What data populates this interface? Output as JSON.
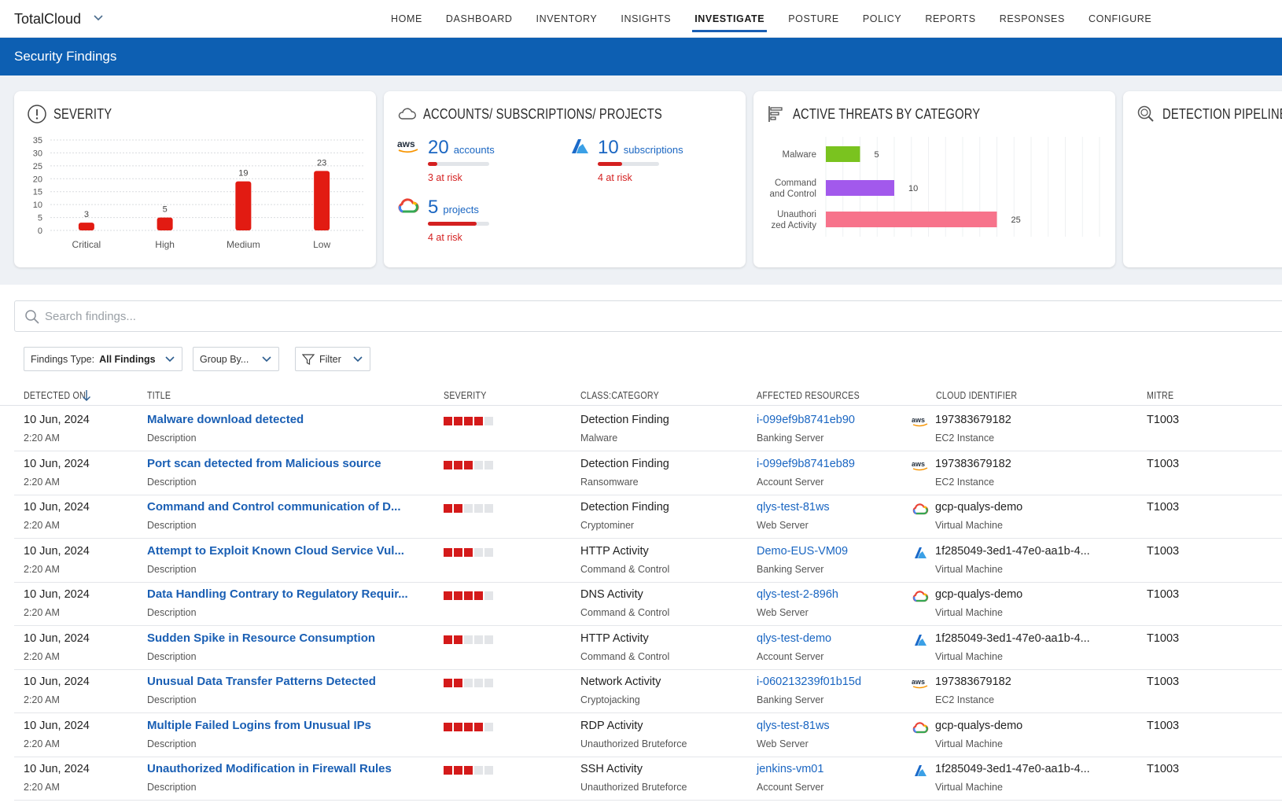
{
  "app": {
    "name": "TotalCloud"
  },
  "nav": [
    "HOME",
    "DASHBOARD",
    "INVENTORY",
    "INSIGHTS",
    "INVESTIGATE",
    "POSTURE",
    "POLICY",
    "REPORTS",
    "RESPONSES",
    "CONFIGURE"
  ],
  "nav_active": "INVESTIGATE",
  "page_title": "Security Findings",
  "cards": {
    "severity": {
      "title": "SEVERITY"
    },
    "accounts": {
      "title": "ACCOUNTS/ SUBSCRIPTIONS/ PROJECTS",
      "aws": {
        "logo": "aws",
        "count": "20",
        "label": "accounts",
        "risk": "3 at risk",
        "risk_fraction": 0.15
      },
      "azure": {
        "count": "10",
        "label": "subscriptions",
        "risk": "4 at risk",
        "risk_fraction": 0.4
      },
      "gcp": {
        "count": "5",
        "label": "projects",
        "risk": "4 at risk",
        "risk_fraction": 0.8
      }
    },
    "threats": {
      "title": "ACTIVE THREATS BY CATEGORY"
    },
    "pipeline": {
      "title": "DETECTION PIPELINE"
    }
  },
  "chart_data": [
    {
      "type": "bar",
      "categories": [
        "Critical",
        "High",
        "Medium",
        "Low"
      ],
      "values": [
        3,
        5,
        19,
        23
      ],
      "yticks": [
        0,
        5,
        10,
        15,
        20,
        25,
        30,
        35
      ],
      "ylim": [
        0,
        35
      ],
      "color": "#e21b12",
      "grid": true
    },
    {
      "type": "bar",
      "orientation": "horizontal",
      "categories": [
        [
          "Malware"
        ],
        [
          "Command",
          "and Control"
        ],
        [
          "Unauthori",
          "zed Activity"
        ]
      ],
      "values": [
        5,
        10,
        25
      ],
      "colors": [
        "#7ac31f",
        "#a259ec",
        "#f7738b"
      ],
      "xlim": [
        0,
        40
      ]
    }
  ],
  "search": {
    "placeholder": "Search findings..."
  },
  "filters": {
    "findings_type_label": "Findings Type:",
    "findings_type_value": "All Findings",
    "group_by": "Group By...",
    "filter": "Filter"
  },
  "table": {
    "headers": [
      "DETECTED ON",
      "TITLE",
      "SEVERITY",
      "CLASS:CATEGORY",
      "AFFECTED RESOURCES",
      "CLOUD IDENTIFIER",
      "MITRE"
    ],
    "rows": [
      {
        "date": "10 Jun, 2024",
        "time": "2:20 AM",
        "title": "Malware download detected",
        "desc": "Description",
        "severity": 4,
        "class": "Detection Finding",
        "category": "Malware",
        "resource": "i-099ef9b8741eb90",
        "resource_type": "Banking Server",
        "cloud": "aws",
        "cloud_id": "197383679182",
        "cloud_type": "EC2 Instance",
        "mitre": "T1003"
      },
      {
        "date": "10 Jun, 2024",
        "time": "2:20 AM",
        "title": "Port scan detected from Malicious source",
        "desc": "Description",
        "severity": 3,
        "class": "Detection Finding",
        "category": "Ransomware",
        "resource": "i-099ef9b8741eb89",
        "resource_type": "Account Server",
        "cloud": "aws",
        "cloud_id": "197383679182",
        "cloud_type": "EC2 Instance",
        "mitre": "T1003"
      },
      {
        "date": "10 Jun, 2024",
        "time": "2:20 AM",
        "title": "Command and Control communication of D...",
        "desc": "Description",
        "severity": 2,
        "class": "Detection Finding",
        "category": "Cryptominer",
        "resource": "qlys-test-81ws",
        "resource_type": "Web Server",
        "cloud": "gcp",
        "cloud_id": "gcp-qualys-demo",
        "cloud_type": "Virtual Machine",
        "mitre": "T1003"
      },
      {
        "date": "10 Jun, 2024",
        "time": "2:20 AM",
        "title": "Attempt to Exploit Known Cloud Service Vul...",
        "desc": "Description",
        "severity": 3,
        "class": "HTTP Activity",
        "category": "Command & Control",
        "resource": "Demo-EUS-VM09",
        "resource_type": "Banking Server",
        "cloud": "azure",
        "cloud_id": "1f285049-3ed1-47e0-aa1b-4...",
        "cloud_type": "Virtual Machine",
        "mitre": "T1003"
      },
      {
        "date": "10 Jun, 2024",
        "time": "2:20 AM",
        "title": "Data Handling Contrary to Regulatory Requir...",
        "desc": "Description",
        "severity": 4,
        "class": "DNS Activity",
        "category": "Command & Control",
        "resource": "qlys-test-2-896h",
        "resource_type": "Web Server",
        "cloud": "gcp",
        "cloud_id": "gcp-qualys-demo",
        "cloud_type": "Virtual Machine",
        "mitre": "T1003"
      },
      {
        "date": "10 Jun, 2024",
        "time": "2:20 AM",
        "title": "Sudden Spike in Resource Consumption",
        "desc": "Description",
        "severity": 2,
        "class": "HTTP Activity",
        "category": "Command & Control",
        "resource": "qlys-test-demo",
        "resource_type": "Account Server",
        "cloud": "azure",
        "cloud_id": "1f285049-3ed1-47e0-aa1b-4...",
        "cloud_type": "Virtual Machine",
        "mitre": "T1003"
      },
      {
        "date": "10 Jun, 2024",
        "time": "2:20 AM",
        "title": "Unusual Data Transfer Patterns Detected",
        "desc": "Description",
        "severity": 2,
        "class": "Network Activity",
        "category": "Cryptojacking",
        "resource": "i-060213239f01b15d",
        "resource_type": "Banking Server",
        "cloud": "aws",
        "cloud_id": "197383679182",
        "cloud_type": "EC2 Instance",
        "mitre": "T1003"
      },
      {
        "date": "10 Jun, 2024",
        "time": "2:20 AM",
        "title": "Multiple Failed Logins from Unusual IPs",
        "desc": "Description",
        "severity": 4,
        "class": "RDP Activity",
        "category": "Unauthorized Bruteforce",
        "resource": "qlys-test-81ws",
        "resource_type": "Web Server",
        "cloud": "gcp",
        "cloud_id": "gcp-qualys-demo",
        "cloud_type": "Virtual Machine",
        "mitre": "T1003"
      },
      {
        "date": "10 Jun, 2024",
        "time": "2:20 AM",
        "title": "Unauthorized Modification in Firewall Rules",
        "desc": "Description",
        "severity": 3,
        "class": "SSH Activity",
        "category": "Unauthorized Bruteforce",
        "resource": "jenkins-vm01",
        "resource_type": "Account Server",
        "cloud": "azure",
        "cloud_id": "1f285049-3ed1-47e0-aa1b-4...",
        "cloud_type": "Virtual Machine",
        "mitre": "T1003"
      }
    ]
  },
  "colors": {
    "brand_blue": "#0d5fb2",
    "link_blue": "#1a5fb4",
    "risk_red": "#d42020",
    "severity_red": "#d41a1a"
  }
}
